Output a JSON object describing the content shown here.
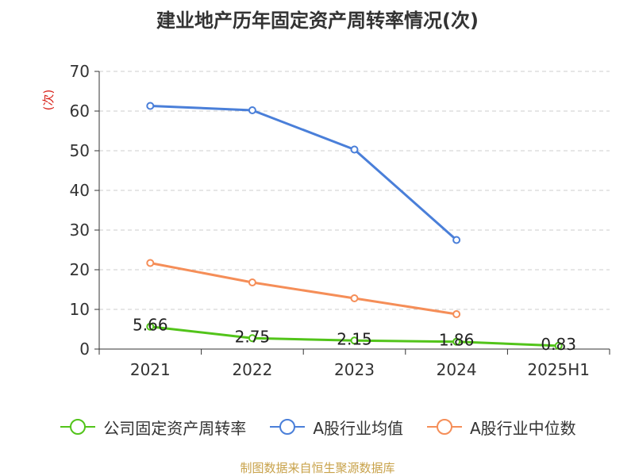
{
  "chart_data": {
    "type": "line",
    "title": "建业地产历年固定资产周转率情况(次)",
    "ylabel": "(次)",
    "xlabel": "",
    "categories": [
      "2021",
      "2022",
      "2023",
      "2024",
      "2025H1"
    ],
    "ylim": [
      0,
      70
    ],
    "yticks": [
      0,
      10,
      20,
      30,
      40,
      50,
      60,
      70
    ],
    "grid": true,
    "legend_position": "bottom",
    "series": [
      {
        "name": "公司固定资产周转率",
        "color": "#52c41a",
        "values": [
          5.66,
          2.75,
          2.15,
          1.86,
          0.83
        ],
        "labels": [
          "5.66",
          "2.75",
          "2.15",
          "1.86",
          "0.83"
        ]
      },
      {
        "name": "A股行业均值",
        "color": "#4a7fd9",
        "values": [
          61.3,
          60.2,
          50.3,
          27.5,
          null
        ]
      },
      {
        "name": "A股行业中位数",
        "color": "#f58e58",
        "values": [
          21.7,
          16.8,
          12.8,
          8.8,
          null
        ]
      }
    ]
  },
  "source": "制图数据来自恒生聚源数据库"
}
